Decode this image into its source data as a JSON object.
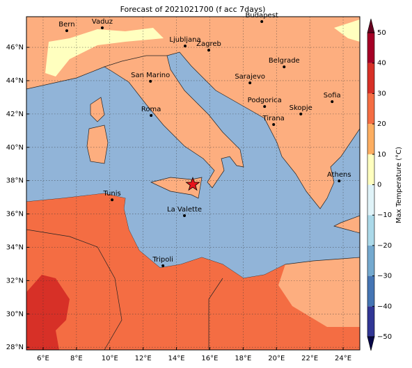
{
  "map": {
    "title": "Forecast of 2021021700 (f acc 7days)",
    "xlim": [
      5,
      25
    ],
    "ylim": [
      27.84,
      47.84
    ],
    "xticks": [
      {
        "value": 6,
        "label": "6°E"
      },
      {
        "value": 8,
        "label": "8°E"
      },
      {
        "value": 10,
        "label": "10°E"
      },
      {
        "value": 12,
        "label": "12°E"
      },
      {
        "value": 14,
        "label": "14°E"
      },
      {
        "value": 16,
        "label": "16°E"
      },
      {
        "value": 18,
        "label": "18°E"
      },
      {
        "value": 20,
        "label": "20°E"
      },
      {
        "value": 22,
        "label": "22°E"
      },
      {
        "value": 24,
        "label": "24°E"
      }
    ],
    "yticks": [
      {
        "value": 28,
        "label": "28°N"
      },
      {
        "value": 30,
        "label": "30°N"
      },
      {
        "value": 32,
        "label": "32°N"
      },
      {
        "value": 34,
        "label": "34°N"
      },
      {
        "value": 36,
        "label": "36°N"
      },
      {
        "value": 38,
        "label": "38°N"
      },
      {
        "value": 40,
        "label": "40°N"
      },
      {
        "value": 42,
        "label": "42°N"
      },
      {
        "value": 44,
        "label": "44°N"
      },
      {
        "value": 46,
        "label": "46°N"
      }
    ],
    "grid": true,
    "cities": [
      {
        "name": "Bern",
        "lon": 7.42,
        "lat": 47.0
      },
      {
        "name": "Vaduz",
        "lon": 9.55,
        "lat": 47.17
      },
      {
        "name": "Budapest",
        "lon": 19.12,
        "lat": 47.55
      },
      {
        "name": "Ljubljana",
        "lon": 14.52,
        "lat": 46.08
      },
      {
        "name": "Zagreb",
        "lon": 15.94,
        "lat": 45.83
      },
      {
        "name": "Belgrade",
        "lon": 20.46,
        "lat": 44.83
      },
      {
        "name": "San Marino",
        "lon": 12.44,
        "lat": 43.96
      },
      {
        "name": "Sarajevo",
        "lon": 18.41,
        "lat": 43.87
      },
      {
        "name": "Sofia",
        "lon": 23.34,
        "lat": 42.74
      },
      {
        "name": "Podgorica",
        "lon": 19.29,
        "lat": 42.45
      },
      {
        "name": "Roma",
        "lon": 12.48,
        "lat": 41.91
      },
      {
        "name": "Skopje",
        "lon": 21.46,
        "lat": 42.0
      },
      {
        "name": "Tirana",
        "lon": 19.83,
        "lat": 41.37
      },
      {
        "name": "Athens",
        "lon": 23.76,
        "lat": 37.98
      },
      {
        "name": "Tunis",
        "lon": 10.14,
        "lat": 36.85
      },
      {
        "name": "La Valette",
        "lon": 14.48,
        "lat": 35.9
      },
      {
        "name": "Tripoli",
        "lon": 13.19,
        "lat": 32.89
      }
    ],
    "event": {
      "lon": 14.98,
      "lat": 37.77,
      "color": "#e8141c"
    },
    "colorbar": {
      "label": "Max Temperature (°C)",
      "lim": [
        -50,
        50
      ],
      "ticks": [
        {
          "value": -50,
          "label": "−50"
        },
        {
          "value": -40,
          "label": "−40"
        },
        {
          "value": -30,
          "label": "−30"
        },
        {
          "value": -20,
          "label": "−20"
        },
        {
          "value": -10,
          "label": "−10"
        },
        0,
        10,
        20,
        30,
        40,
        50
      ],
      "colors": [
        "#313695",
        "#4575b4",
        "#74a9cf",
        "#abd9e9",
        "#e0f3f8",
        "#ffffbf",
        "#fdae61",
        "#f46d43",
        "#d73027",
        "#a50026"
      ]
    }
  }
}
